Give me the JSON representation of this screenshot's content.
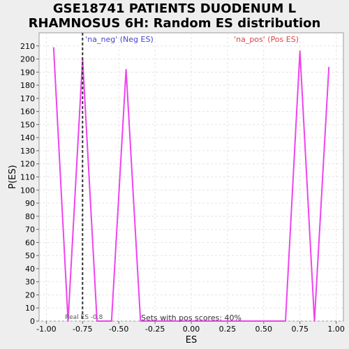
{
  "chart_data": {
    "type": "line",
    "title_lines": [
      "GSE18741 PATIENTS DUODENUM L",
      "RHAMNOSUS 6H: Random ES distribution"
    ],
    "xlabel": "ES",
    "ylabel": "P(ES)",
    "xlim": [
      -1.05,
      1.05
    ],
    "ylim": [
      0,
      220
    ],
    "xticks": [
      -1.0,
      -0.75,
      -0.5,
      -0.25,
      0.0,
      0.25,
      0.5,
      0.75,
      1.0
    ],
    "xtick_labels": [
      "-1.00",
      "-0.75",
      "-0.50",
      "-0.25",
      "0.00",
      "0.25",
      "0.50",
      "0.75",
      "1.00"
    ],
    "yticks": [
      0,
      10,
      20,
      30,
      40,
      50,
      60,
      70,
      80,
      90,
      100,
      110,
      120,
      130,
      140,
      150,
      160,
      170,
      180,
      190,
      200,
      210
    ],
    "grid": true,
    "series": [
      {
        "color": "#ee44ee",
        "x": [
          -0.95,
          -0.85,
          -0.75,
          -0.65,
          -0.55,
          -0.45,
          -0.35,
          -0.25,
          0.65,
          0.75,
          0.85,
          0.95
        ],
        "y": [
          209,
          0,
          200,
          0,
          0,
          192,
          0,
          0,
          0,
          206,
          0,
          194
        ]
      }
    ],
    "real_es": {
      "x": -0.75,
      "label": "Real ES -0.8"
    },
    "annotations": {
      "neg_label": "'na_neg' (Neg ES)",
      "neg_color": "#4444cc",
      "pos_label": "'na_pos' (Pos ES)",
      "pos_color": "#dd4444",
      "pos_scores": "Sets with pos scores: 40%"
    }
  }
}
